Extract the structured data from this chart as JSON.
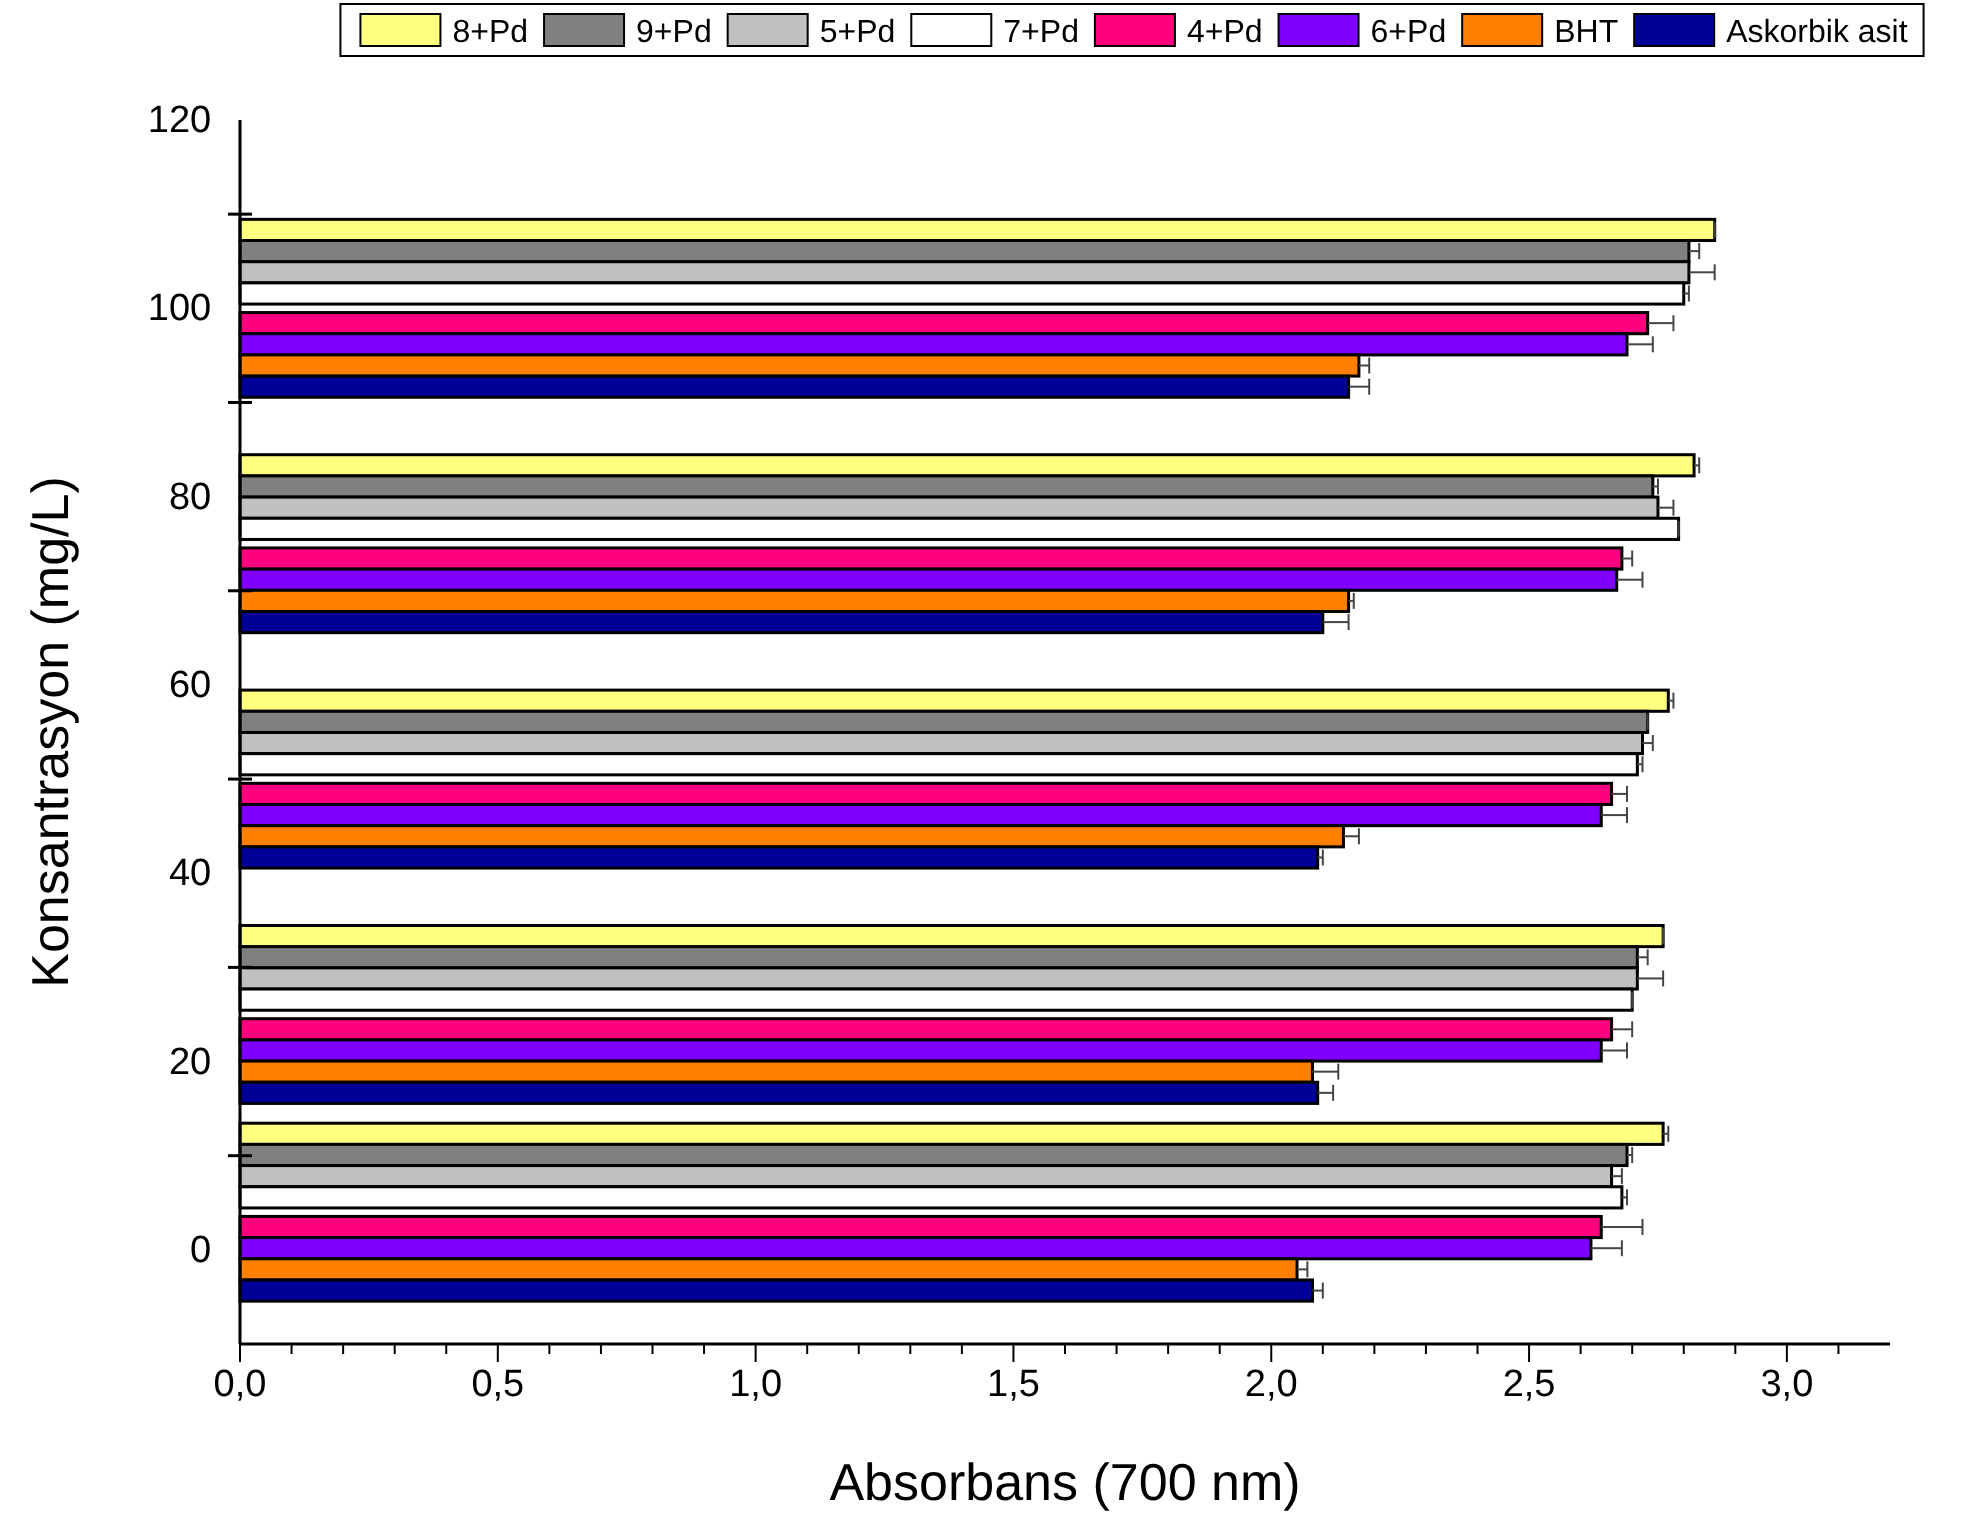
{
  "chart_data": {
    "type": "bar",
    "orientation": "horizontal",
    "xlabel": "Absorbans (700 nm)",
    "ylabel": "Konsantrasyon (mg/L)",
    "x": [
      100,
      75,
      50,
      25,
      4
    ],
    "xlim": [
      0,
      3.2
    ],
    "xticks": [
      {
        "value": 0,
        "label": "0,0"
      },
      {
        "value": 0.1,
        "label": null
      },
      {
        "value": 0.2,
        "label": null
      },
      {
        "value": 0.3,
        "label": null
      },
      {
        "value": 0.4,
        "label": null
      },
      {
        "value": 0.5,
        "label": "0,5"
      },
      {
        "value": 0.6,
        "label": null
      },
      {
        "value": 0.7,
        "label": null
      },
      {
        "value": 0.8,
        "label": null
      },
      {
        "value": 0.9,
        "label": null
      },
      {
        "value": 1,
        "label": "1,0"
      },
      {
        "value": 1.1,
        "label": null
      },
      {
        "value": 1.2,
        "label": null
      },
      {
        "value": 1.3,
        "label": null
      },
      {
        "value": 1.4,
        "label": null
      },
      {
        "value": 1.5,
        "label": "1,5"
      },
      {
        "value": 1.6,
        "label": null
      },
      {
        "value": 1.7,
        "label": null
      },
      {
        "value": 1.8,
        "label": null
      },
      {
        "value": 1.9,
        "label": null
      },
      {
        "value": 2,
        "label": "2,0"
      },
      {
        "value": 2.1,
        "label": null
      },
      {
        "value": 2.2,
        "label": null
      },
      {
        "value": 2.3,
        "label": null
      },
      {
        "value": 2.4,
        "label": null
      },
      {
        "value": 2.5,
        "label": "2,5"
      },
      {
        "value": 2.6,
        "label": null
      },
      {
        "value": 2.7,
        "label": null
      },
      {
        "value": 2.8,
        "label": null
      },
      {
        "value": 2.9,
        "label": null
      },
      {
        "value": 3,
        "label": "3,0"
      },
      {
        "value": 3.1,
        "label": null
      }
    ],
    "ylim": [
      -10,
      120
    ],
    "yticks": [
      0,
      {
        "value": 10,
        "label": null
      },
      20,
      {
        "value": 30,
        "label": null
      },
      40,
      {
        "value": 50,
        "label": null
      },
      60,
      {
        "value": 70,
        "label": null
      },
      80,
      {
        "value": 90,
        "label": null
      },
      100,
      {
        "value": 110,
        "label": null
      },
      120
    ],
    "legend": "top",
    "series": [
      {
        "name": "8+Pd",
        "color": "#ffff80",
        "values": [
          2.86,
          2.82,
          2.77,
          2.76,
          2.76
        ],
        "errors": [
          [
            2.86,
            2.86
          ],
          [
            2.82,
            2.83
          ],
          [
            2.77,
            2.78
          ],
          [
            2.76,
            2.76
          ],
          [
            2.76,
            2.77
          ]
        ]
      },
      {
        "name": "9+Pd",
        "color": "#808080",
        "values": [
          2.81,
          2.74,
          2.73,
          2.71,
          2.69
        ],
        "errors": [
          [
            2.81,
            2.83
          ],
          [
            2.74,
            2.75
          ],
          [
            2.73,
            2.73
          ],
          [
            2.71,
            2.73
          ],
          [
            2.69,
            2.7
          ]
        ]
      },
      {
        "name": "5+Pd",
        "color": "#c0c0c0",
        "values": [
          2.81,
          2.75,
          2.72,
          2.71,
          2.66
        ],
        "errors": [
          [
            2.81,
            2.86
          ],
          [
            2.75,
            2.78
          ],
          [
            2.72,
            2.74
          ],
          [
            2.71,
            2.76
          ],
          [
            2.66,
            2.68
          ]
        ]
      },
      {
        "name": "7+Pd",
        "color": "#ffffff",
        "values": [
          2.8,
          2.79,
          2.71,
          2.7,
          2.68
        ],
        "errors": [
          [
            2.8,
            2.81
          ],
          [
            2.79,
            2.79
          ],
          [
            2.71,
            2.72
          ],
          [
            2.7,
            2.7
          ],
          [
            2.68,
            2.69
          ]
        ]
      },
      {
        "name": "4+Pd",
        "color": "#ff0080",
        "values": [
          2.73,
          2.68,
          2.66,
          2.66,
          2.64
        ],
        "errors": [
          [
            2.73,
            2.78
          ],
          [
            2.68,
            2.7
          ],
          [
            2.66,
            2.69
          ],
          [
            2.66,
            2.7
          ],
          [
            2.64,
            2.72
          ]
        ]
      },
      {
        "name": "6+Pd",
        "color": "#8000ff",
        "values": [
          2.69,
          2.67,
          2.64,
          2.64,
          2.62
        ],
        "errors": [
          [
            2.69,
            2.74
          ],
          [
            2.67,
            2.72
          ],
          [
            2.64,
            2.69
          ],
          [
            2.64,
            2.69
          ],
          [
            2.62,
            2.68
          ]
        ]
      },
      {
        "name": "BHT",
        "color": "#ff8000",
        "values": [
          2.17,
          2.15,
          2.14,
          2.08,
          2.05
        ],
        "errors": [
          [
            2.17,
            2.19
          ],
          [
            2.15,
            2.16
          ],
          [
            2.14,
            2.17
          ],
          [
            2.08,
            2.13
          ],
          [
            2.05,
            2.07
          ]
        ]
      },
      {
        "name": "Askorbik asit",
        "color": "#000099",
        "values": [
          2.15,
          2.1,
          2.09,
          2.09,
          2.08
        ],
        "errors": [
          [
            2.15,
            2.19
          ],
          [
            2.1,
            2.15
          ],
          [
            2.09,
            2.1
          ],
          [
            2.09,
            2.12
          ],
          [
            2.08,
            2.1
          ]
        ]
      }
    ]
  }
}
